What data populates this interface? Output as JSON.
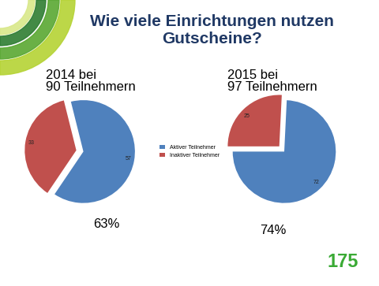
{
  "title": "Wie viele Einrichtungen nutzen Gutscheine?",
  "logo": "175",
  "chart_data": [
    {
      "type": "pie",
      "subtitle": "2014 bei\n90 Teilnehmern",
      "categories": [
        "Aktiver Teilnehmer",
        "Inaktiver Teilnehmer"
      ],
      "values": [
        57,
        33
      ],
      "colors": [
        "#4f81bd",
        "#c0504d"
      ],
      "data_labels": true,
      "legend": "center",
      "annotation": "63%"
    },
    {
      "type": "pie",
      "subtitle": "2015 bei\n97 Teilnehmern",
      "categories": [
        "Aktiver Teilnehmer",
        "Inaktiver Teilnehmer"
      ],
      "values": [
        72,
        25
      ],
      "colors": [
        "#4f81bd",
        "#c0504d"
      ],
      "data_labels": true,
      "legend": "center",
      "annotation": "74%"
    }
  ]
}
